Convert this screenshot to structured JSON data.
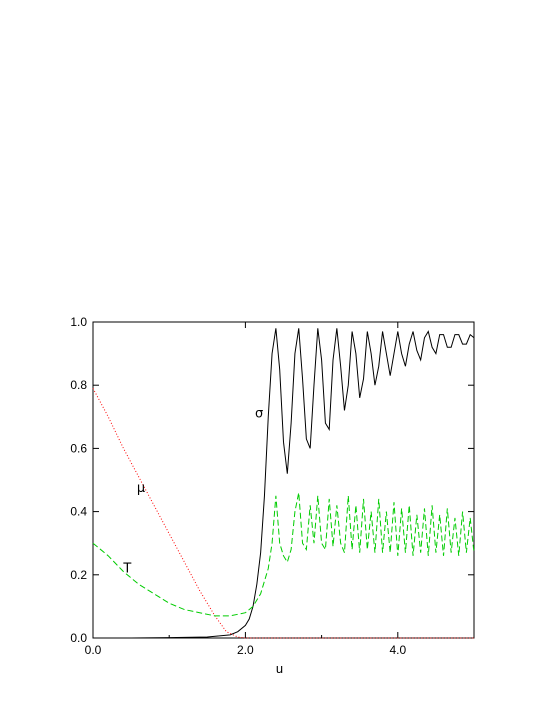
{
  "chart_data": {
    "type": "line",
    "title": "",
    "xlabel": "u",
    "ylabel": "",
    "xlim": [
      0,
      5
    ],
    "ylim": [
      0,
      1
    ],
    "grid": false,
    "x_ticks": [
      "0.0",
      "2.0",
      "4.0"
    ],
    "x_tick_values": [
      0,
      2,
      4
    ],
    "y_ticks": [
      "0.0",
      "0.2",
      "0.4",
      "0.6",
      "0.8",
      "1.0"
    ],
    "y_tick_values": [
      0,
      0.2,
      0.4,
      0.6,
      0.8,
      1.0
    ],
    "annotations": [
      {
        "text": "σ",
        "x": 2.18,
        "y": 0.71
      },
      {
        "text": "μ",
        "x": 0.63,
        "y": 0.475
      },
      {
        "text": "T",
        "x": 0.45,
        "y": 0.22
      }
    ],
    "series": [
      {
        "key": "sigma",
        "color": "#000000",
        "style": "solid",
        "x": [
          0,
          0.5,
          1.0,
          1.5,
          1.8,
          1.9,
          2.0,
          2.05,
          2.1,
          2.15,
          2.2,
          2.25,
          2.3,
          2.35,
          2.4,
          2.45,
          2.5,
          2.55,
          2.6,
          2.65,
          2.7,
          2.75,
          2.8,
          2.85,
          2.9,
          2.95,
          3.0,
          3.05,
          3.1,
          3.15,
          3.2,
          3.25,
          3.3,
          3.35,
          3.4,
          3.45,
          3.5,
          3.55,
          3.6,
          3.65,
          3.7,
          3.75,
          3.8,
          3.85,
          3.9,
          3.95,
          4.0,
          4.05,
          4.1,
          4.15,
          4.2,
          4.25,
          4.3,
          4.35,
          4.4,
          4.45,
          4.5,
          4.55,
          4.6,
          4.65,
          4.7,
          4.75,
          4.8,
          4.85,
          4.9,
          4.95,
          5.0
        ],
        "y": [
          0,
          0,
          0.001,
          0.003,
          0.01,
          0.02,
          0.04,
          0.06,
          0.1,
          0.17,
          0.27,
          0.45,
          0.7,
          0.9,
          0.98,
          0.85,
          0.62,
          0.52,
          0.68,
          0.9,
          0.98,
          0.82,
          0.63,
          0.6,
          0.8,
          0.98,
          0.88,
          0.68,
          0.66,
          0.88,
          0.98,
          0.86,
          0.72,
          0.8,
          0.97,
          0.9,
          0.76,
          0.82,
          0.97,
          0.9,
          0.8,
          0.86,
          0.97,
          0.9,
          0.83,
          0.9,
          0.97,
          0.9,
          0.86,
          0.93,
          0.97,
          0.91,
          0.88,
          0.95,
          0.97,
          0.92,
          0.9,
          0.96,
          0.96,
          0.92,
          0.92,
          0.96,
          0.96,
          0.93,
          0.93,
          0.96,
          0.95
        ]
      },
      {
        "key": "mu",
        "color": "#ff0000",
        "style": "dotted",
        "x": [
          0,
          0.2,
          0.4,
          0.6,
          0.8,
          1.0,
          1.2,
          1.4,
          1.6,
          1.75,
          1.9,
          2.0,
          3.0,
          4.0,
          5.0
        ],
        "y": [
          0.79,
          0.7,
          0.6,
          0.51,
          0.42,
          0.33,
          0.24,
          0.15,
          0.07,
          0.02,
          0.003,
          0,
          0,
          0,
          0
        ]
      },
      {
        "key": "T",
        "color": "#00cc00",
        "style": "dashed",
        "x": [
          0,
          0.2,
          0.4,
          0.6,
          0.8,
          1.0,
          1.2,
          1.4,
          1.6,
          1.8,
          2.0,
          2.1,
          2.2,
          2.3,
          2.35,
          2.4,
          2.45,
          2.5,
          2.55,
          2.6,
          2.65,
          2.7,
          2.75,
          2.8,
          2.85,
          2.9,
          2.95,
          3.0,
          3.05,
          3.1,
          3.15,
          3.2,
          3.25,
          3.3,
          3.35,
          3.4,
          3.45,
          3.5,
          3.55,
          3.6,
          3.65,
          3.7,
          3.75,
          3.8,
          3.85,
          3.9,
          3.95,
          4.0,
          4.05,
          4.1,
          4.15,
          4.2,
          4.25,
          4.3,
          4.35,
          4.4,
          4.45,
          4.5,
          4.55,
          4.6,
          4.65,
          4.7,
          4.75,
          4.8,
          4.85,
          4.9,
          4.95,
          5.0
        ],
        "y": [
          0.3,
          0.26,
          0.21,
          0.17,
          0.14,
          0.11,
          0.09,
          0.08,
          0.07,
          0.07,
          0.08,
          0.1,
          0.14,
          0.22,
          0.3,
          0.45,
          0.3,
          0.26,
          0.24,
          0.28,
          0.4,
          0.46,
          0.3,
          0.28,
          0.42,
          0.3,
          0.45,
          0.3,
          0.28,
          0.44,
          0.29,
          0.42,
          0.3,
          0.27,
          0.45,
          0.28,
          0.42,
          0.27,
          0.44,
          0.28,
          0.4,
          0.27,
          0.44,
          0.27,
          0.4,
          0.27,
          0.43,
          0.26,
          0.41,
          0.27,
          0.42,
          0.26,
          0.39,
          0.27,
          0.41,
          0.26,
          0.42,
          0.27,
          0.39,
          0.26,
          0.41,
          0.27,
          0.38,
          0.26,
          0.4,
          0.27,
          0.38,
          0.27
        ]
      }
    ]
  }
}
